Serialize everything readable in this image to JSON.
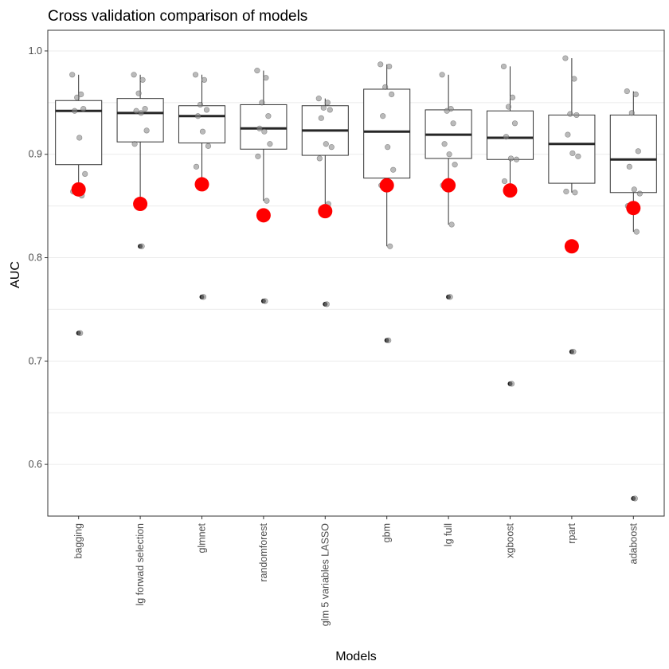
{
  "chart_data": {
    "type": "boxplot",
    "title": "Cross validation comparison of models",
    "xlabel": "Models",
    "ylabel": "AUC",
    "ylim": [
      0.55,
      1.02
    ],
    "yticks": [
      0.6,
      0.7,
      0.8,
      0.9,
      1.0
    ],
    "ytick_labels": [
      "0.6",
      "0.7",
      "0.8",
      "0.9",
      "1.0"
    ],
    "grid": "horizontal",
    "categories": [
      "bagging",
      "lg forwad selection",
      "glmnet",
      "randomforest",
      "glm 5 variables LASSO",
      "gbm",
      "lg full",
      "xgboost",
      "rpart",
      "adaboost"
    ],
    "boxes": [
      {
        "model": "bagging",
        "q1": 0.89,
        "median": 0.942,
        "q3": 0.952,
        "whisker_low": 0.86,
        "whisker_high": 0.977,
        "outliers": [
          0.727
        ],
        "points": [
          0.977,
          0.958,
          0.955,
          0.944,
          0.942,
          0.916,
          0.881,
          0.864,
          0.86,
          0.727
        ],
        "highlight": 0.866
      },
      {
        "model": "lg forwad selection",
        "q1": 0.912,
        "median": 0.94,
        "q3": 0.954,
        "whisker_low": 0.85,
        "whisker_high": 0.977,
        "outliers": [
          0.811
        ],
        "points": [
          0.977,
          0.972,
          0.959,
          0.944,
          0.942,
          0.94,
          0.923,
          0.91,
          0.85,
          0.811
        ],
        "highlight": 0.852
      },
      {
        "model": "glmnet",
        "q1": 0.911,
        "median": 0.937,
        "q3": 0.947,
        "whisker_low": 0.87,
        "whisker_high": 0.977,
        "outliers": [
          0.762
        ],
        "points": [
          0.977,
          0.972,
          0.948,
          0.943,
          0.937,
          0.922,
          0.908,
          0.888,
          0.87,
          0.762
        ],
        "highlight": 0.871
      },
      {
        "model": "randomforest",
        "q1": 0.905,
        "median": 0.925,
        "q3": 0.948,
        "whisker_low": 0.855,
        "whisker_high": 0.981,
        "outliers": [
          0.758
        ],
        "points": [
          0.981,
          0.974,
          0.95,
          0.937,
          0.925,
          0.922,
          0.91,
          0.898,
          0.855,
          0.758
        ],
        "highlight": 0.841
      },
      {
        "model": "glm 5 variables LASSO",
        "q1": 0.899,
        "median": 0.923,
        "q3": 0.947,
        "whisker_low": 0.852,
        "whisker_high": 0.954,
        "outliers": [
          0.755
        ],
        "points": [
          0.954,
          0.95,
          0.945,
          0.943,
          0.935,
          0.91,
          0.907,
          0.896,
          0.852,
          0.755
        ],
        "highlight": 0.845
      },
      {
        "model": "gbm",
        "q1": 0.877,
        "median": 0.922,
        "q3": 0.963,
        "whisker_low": 0.811,
        "whisker_high": 0.987,
        "outliers": [
          0.72
        ],
        "points": [
          0.987,
          0.985,
          0.965,
          0.958,
          0.937,
          0.907,
          0.885,
          0.87,
          0.811,
          0.72
        ],
        "highlight": 0.87
      },
      {
        "model": "lg full",
        "q1": 0.896,
        "median": 0.919,
        "q3": 0.943,
        "whisker_low": 0.832,
        "whisker_high": 0.977,
        "outliers": [
          0.762
        ],
        "points": [
          0.977,
          0.944,
          0.942,
          0.93,
          0.91,
          0.9,
          0.89,
          0.87,
          0.832,
          0.762
        ],
        "highlight": 0.87
      },
      {
        "model": "xgboost",
        "q1": 0.895,
        "median": 0.916,
        "q3": 0.942,
        "whisker_low": 0.864,
        "whisker_high": 0.985,
        "outliers": [
          0.678
        ],
        "points": [
          0.985,
          0.955,
          0.946,
          0.93,
          0.917,
          0.896,
          0.895,
          0.874,
          0.864,
          0.678
        ],
        "highlight": 0.865
      },
      {
        "model": "rpart",
        "q1": 0.872,
        "median": 0.91,
        "q3": 0.938,
        "whisker_low": 0.863,
        "whisker_high": 0.993,
        "outliers": [
          0.709
        ],
        "points": [
          0.993,
          0.973,
          0.939,
          0.938,
          0.919,
          0.901,
          0.898,
          0.864,
          0.863,
          0.709
        ],
        "highlight": 0.811
      },
      {
        "model": "adaboost",
        "q1": 0.863,
        "median": 0.895,
        "q3": 0.938,
        "whisker_low": 0.825,
        "whisker_high": 0.961,
        "outliers": [
          0.567
        ],
        "points": [
          0.961,
          0.958,
          0.94,
          0.903,
          0.888,
          0.866,
          0.862,
          0.85,
          0.825,
          0.567
        ],
        "highlight": 0.848
      }
    ],
    "colors": {
      "box_stroke": "#333333",
      "median": "#262626",
      "points": "#8c8c8c",
      "highlight": "#ff0000",
      "grid": "#ebebeb",
      "panel_border": "#333333"
    }
  }
}
